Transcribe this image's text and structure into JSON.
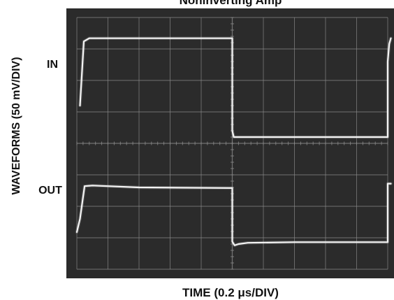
{
  "chart_data": {
    "type": "line",
    "title": "Noninverting Amp",
    "xlabel": "TIME (0.2 μs/DIV)",
    "ylabel": "WAVEFORMS (50 mV/DIV)",
    "x_divisions": 10,
    "y_divisions": 8,
    "x_unit": "μs",
    "y_unit": "mV",
    "x_per_div": 0.2,
    "y_per_div": 50,
    "xlim": [
      0,
      2.0
    ],
    "ylim": [
      -200,
      200
    ],
    "grid": true,
    "screen_color": "#2b2b2b",
    "grid_color": "#8a8a8a",
    "trace_color": "#f4f4f4",
    "series": [
      {
        "name": "IN",
        "x": [
          0.02,
          0.045,
          0.08,
          1.0,
          1.0,
          1.01,
          1.04,
          2.0,
          2.0,
          2.01,
          2.02
        ],
        "y": [
          60,
          162,
          167,
          167,
          20,
          10,
          10,
          10,
          130,
          158,
          167
        ]
      },
      {
        "name": "OUT",
        "x": [
          0.0,
          0.02,
          0.05,
          0.1,
          0.4,
          1.0,
          1.0,
          1.015,
          1.04,
          1.1,
          1.4,
          2.0,
          2.0,
          2.01,
          2.02
        ],
        "y": [
          -141,
          -120,
          -68,
          -67,
          -70,
          -71,
          -156,
          -162,
          -160,
          -158,
          -157,
          -157,
          -64,
          -64,
          -64
        ]
      }
    ]
  }
}
